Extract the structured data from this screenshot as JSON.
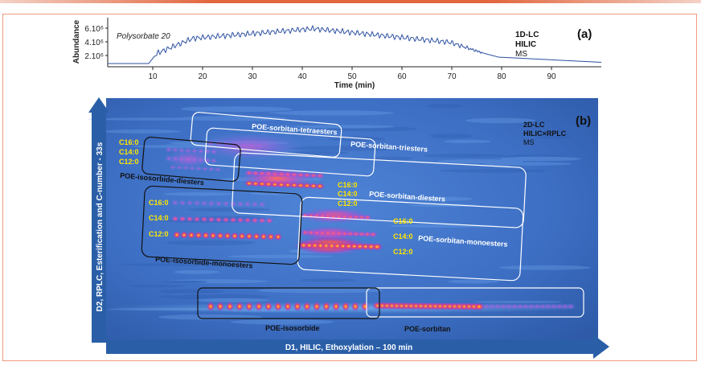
{
  "panel_a": {
    "label": "(a)",
    "sample": "Polysorbate 20",
    "method": {
      "line1": "1D-LC",
      "line2": "HILIC",
      "line3": "MS"
    },
    "ylabel": "Abundance",
    "xlabel": "Time (min)",
    "yticks": [
      "6.10⁶",
      "4.10⁶",
      "2.10⁶"
    ],
    "xticks": [
      "10",
      "20",
      "30",
      "40",
      "50",
      "60",
      "70",
      "80",
      "90"
    ]
  },
  "panel_b": {
    "label": "(b)",
    "method": {
      "line1": "2D-LC",
      "line2": "HILIC×RPLC",
      "line3": "MS"
    },
    "yaxis_label": "D2, RPLC, Esterification and C-number - 33s",
    "xaxis_label": "D1, HILIC, Ethoxylation – 100 min",
    "groups": {
      "tetraesters": "POE-sorbitan-tetraesters",
      "triesters": "POE-sorbitan-triesters",
      "isosorbide_diesters": "POE-isosorbide-diesters",
      "sorbitan_diesters": "POE-sorbitan-diesters",
      "isosorbide_monoesters": "POE-isosorbide-monoesters",
      "sorbitan_monoesters": "POE-sorbitan-monoesters",
      "isosorbide": "POE-isosorbide",
      "sorbitan": "POE-sorbitan"
    },
    "carbon_labels": {
      "isosorbide_diesters": [
        "C16:0",
        "C14:0",
        "C12:0"
      ],
      "isosorbide_monoesters": [
        "C16:0",
        "C14:0",
        "C12:0"
      ],
      "sorbitan_diesters": [
        "C16:0",
        "C14:0",
        "C12:0"
      ],
      "sorbitan_monoesters": [
        "C16:0",
        "C14:0",
        "C12:0"
      ]
    },
    "colors": {
      "annotation": "#ffe600",
      "box_white": "#ffffff",
      "box_black": "#111111",
      "arrow": "#2a5fa8"
    }
  }
}
